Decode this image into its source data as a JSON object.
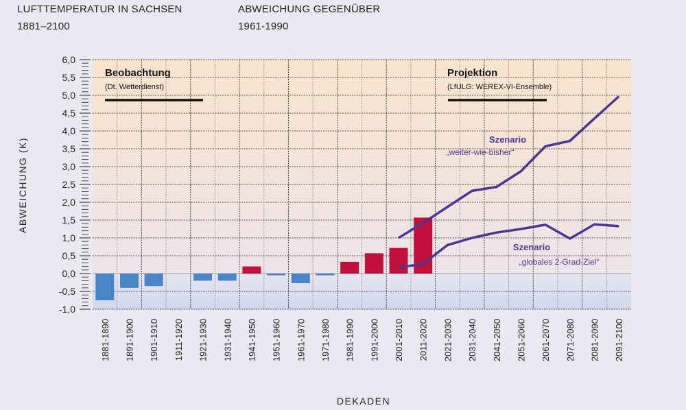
{
  "header": {
    "title": "LUFTTEMPERATUR IN SACHSEN",
    "title_period": "1881–2100",
    "subtitle": "ABWEICHUNG GEGENÜBER",
    "subtitle_period": "1961-1990"
  },
  "chart_data": {
    "type": "bar",
    "title": "Lufttemperatur in Sachsen 1881–2100",
    "xlabel": "DEKADEN",
    "ylabel": "ABWEICHUNG (K)",
    "ylim": [
      -1.0,
      6.0
    ],
    "yticks": [
      "-1,0",
      "-0,5",
      "0,0",
      "0,5",
      "1,0",
      "1,5",
      "2,0",
      "2,5",
      "3,0",
      "3,5",
      "4,0",
      "4,5",
      "5,0",
      "5,5",
      "6,0"
    ],
    "grid": true,
    "categories": [
      "1881-1890",
      "1891-1900",
      "1901-1910",
      "1911-1920",
      "1921-1930",
      "1931-1940",
      "1941-1950",
      "1951-1960",
      "1961-1970",
      "1971-1980",
      "1981-1990",
      "1991-2000",
      "2001-2010",
      "2011-2020",
      "2021-2030",
      "2031-2040",
      "2041-2050",
      "2051-2060",
      "2061-2070",
      "2071-2080",
      "2081-2090",
      "2091-2100"
    ],
    "bars": {
      "name": "Beobachtung",
      "values": [
        -0.75,
        -0.4,
        -0.35,
        0,
        -0.2,
        -0.2,
        0.2,
        -0.05,
        -0.27,
        -0.05,
        0.33,
        0.57,
        0.72,
        1.57,
        null,
        null,
        null,
        null,
        null,
        null,
        null,
        null
      ]
    },
    "series": [
      {
        "name": "Szenario „weiter-wie-bisher“",
        "values": [
          null,
          null,
          null,
          null,
          null,
          null,
          null,
          null,
          null,
          null,
          null,
          null,
          1.0,
          1.42,
          1.87,
          2.32,
          2.43,
          2.87,
          3.57,
          3.72,
          4.35,
          4.97
        ]
      },
      {
        "name": "Szenario „globales 2-Grad-Ziel“",
        "values": [
          null,
          null,
          null,
          null,
          null,
          null,
          null,
          null,
          null,
          null,
          null,
          null,
          0.17,
          0.27,
          0.8,
          1.0,
          1.15,
          1.25,
          1.37,
          0.98,
          1.38,
          1.33
        ]
      }
    ],
    "annotations": {
      "obs_title": "Beobachtung",
      "obs_source": "(Dt. Wetterdienst)",
      "proj_title": "Projektion",
      "proj_source": "(LfULG: WEREX-VI-Ensemble)",
      "s1_line1": "Szenario",
      "s1_line2": "„weiter-wie-bisher“",
      "s2_line1": "Szenario",
      "s2_line2": "„globales 2-Grad-Ziel“"
    },
    "colors": {
      "negative": "#4a85c8",
      "positive": "#c2103c",
      "line": "#4b3790",
      "warm_bg": "#f8e6d0",
      "cool_bg": "#d3daee"
    }
  }
}
